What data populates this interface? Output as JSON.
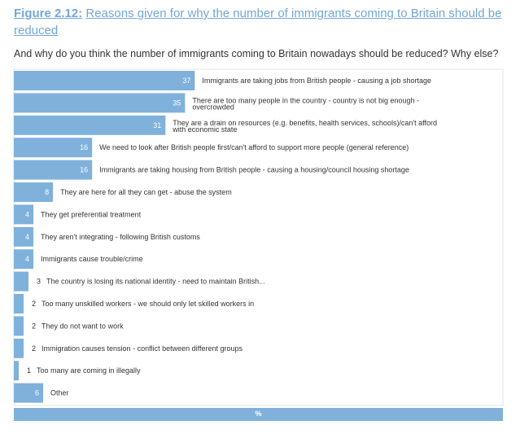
{
  "title": {
    "figure": "Figure 2.12:",
    "text": "Reasons given for why the number of immigrants coming to Britain should be reduced"
  },
  "question": "And why do you think the number of immigrants coming to Britain nowadays should be reduced? Why else?",
  "colors": {
    "bar": "#7fb1db",
    "value_inside": "#ffffff",
    "value_outside": "#333333",
    "label": "#333333",
    "title": "#72a7d8"
  },
  "chart_data": {
    "type": "bar",
    "orientation": "horizontal",
    "unit": "%",
    "xlim": [
      0,
      100
    ],
    "categories": [
      "Immigrants are taking jobs from British people - causing a job shortage",
      "There are too many people in the country - country is not big enough - overcrowded",
      "They are a drain on resources (e.g. benefits, health services, schools)/can't afford with economic state",
      "We need to look after British people first/can't afford to support more people (general reference)",
      "Immigrants are taking housing from British people - causing a housing/council housing shortage",
      "They are here for all they can get - abuse the system",
      "They get preferential treatment",
      "They aren't integrating - following British customs",
      "Immigrants cause trouble/crime",
      "The country is losing its national identity - need to maintain British...",
      "Too many unskilled workers - we should only let skilled workers in",
      "They do not want to work",
      "Immigration causes tension - conflict between different groups",
      "Too many are coming in illegally",
      "Other"
    ],
    "values": [
      37,
      35,
      31,
      16,
      16,
      8,
      4,
      4,
      4,
      3,
      2,
      2,
      2,
      1,
      6
    ],
    "xlabel": "%"
  }
}
